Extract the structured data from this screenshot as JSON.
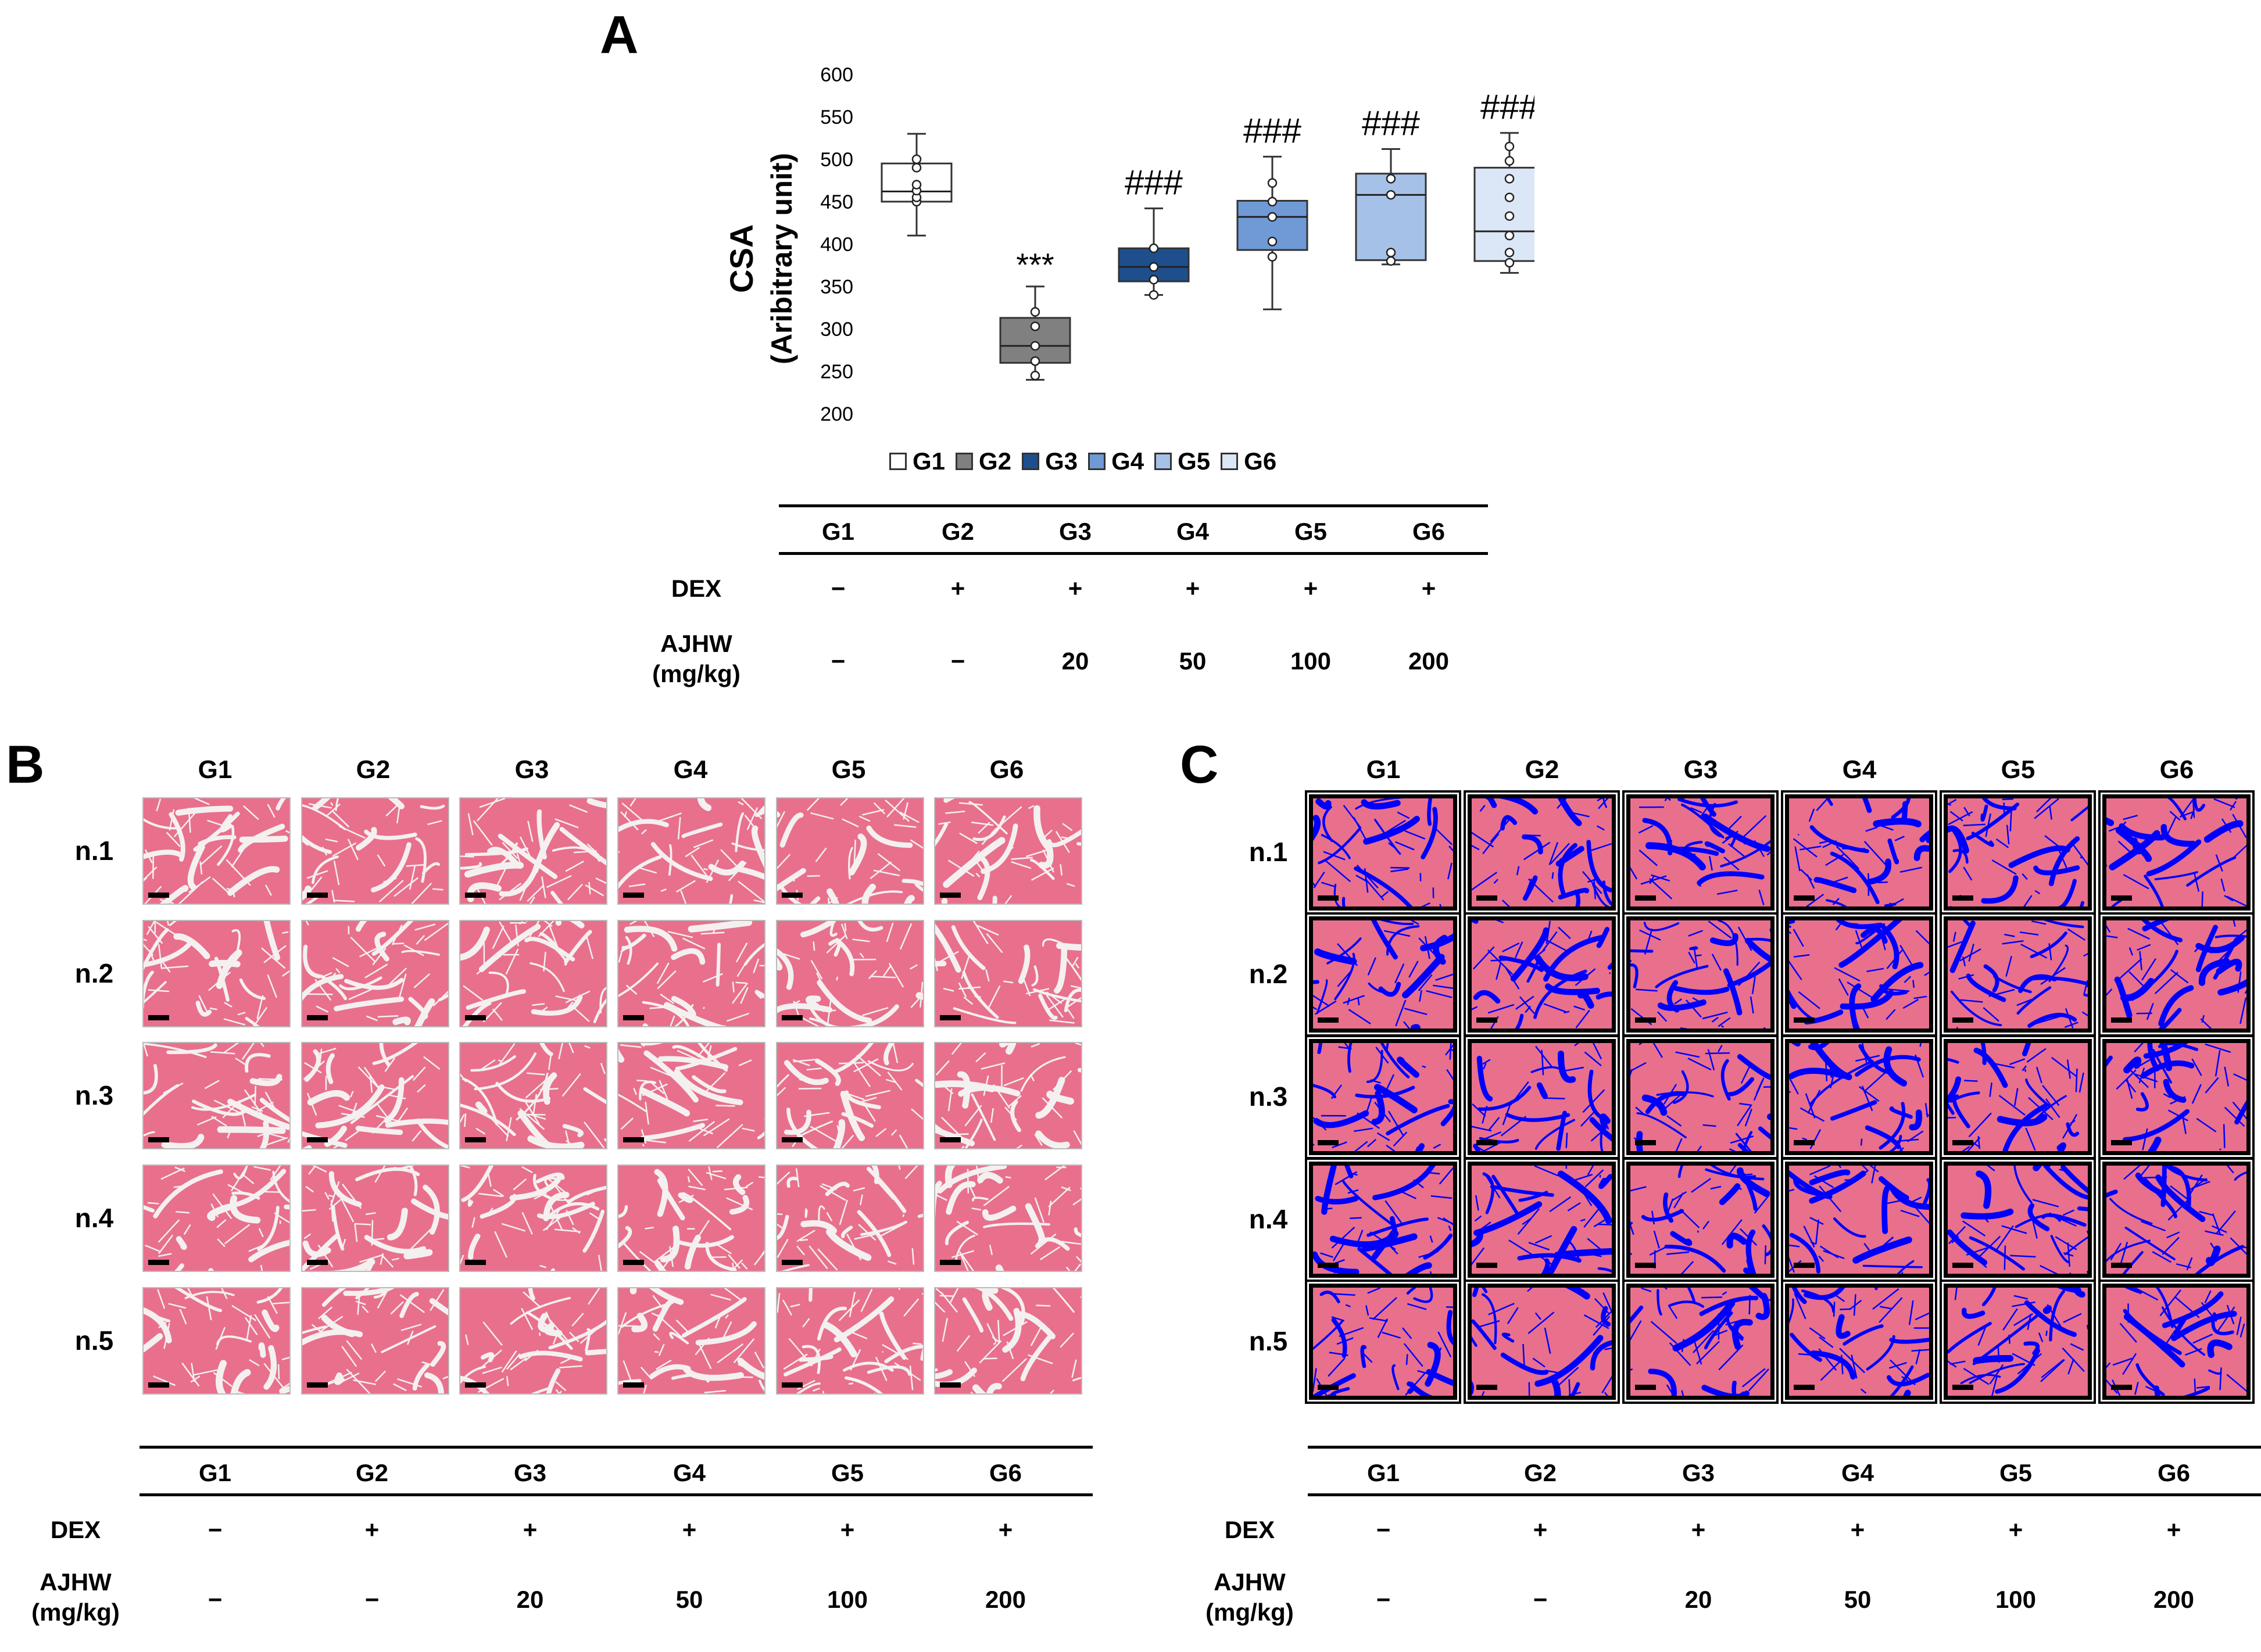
{
  "panels": {
    "a": {
      "letter": "A"
    },
    "b": {
      "letter": "B"
    },
    "c": {
      "letter": "C"
    }
  },
  "chart_data": {
    "type": "box",
    "title": "",
    "ylabel_line1": "CSA",
    "ylabel_line2": "(Aribitrary unit)",
    "ylim": [
      200,
      600
    ],
    "yticks": [
      200,
      250,
      300,
      350,
      400,
      450,
      500,
      550,
      600
    ],
    "legend": [
      {
        "label": "G1",
        "color": "#ffffff"
      },
      {
        "label": "G2",
        "color": "#808080"
      },
      {
        "label": "G3",
        "color": "#1f4e8c"
      },
      {
        "label": "G4",
        "color": "#6f9ad6"
      },
      {
        "label": "G5",
        "color": "#a6c1e8"
      },
      {
        "label": "G6",
        "color": "#dbe6f6"
      }
    ],
    "groups": [
      {
        "name": "G1",
        "color": "#ffffff",
        "whisker_low": 410,
        "q1": 450,
        "median": 462,
        "q3": 495,
        "whisker_high": 530,
        "points": [
          450,
          455,
          463,
          470,
          490,
          500
        ],
        "annotation": ""
      },
      {
        "name": "G2",
        "color": "#808080",
        "whisker_low": 240,
        "q1": 260,
        "median": 280,
        "q3": 313,
        "whisker_high": 350,
        "points": [
          245,
          262,
          280,
          303,
          320
        ],
        "annotation": "***"
      },
      {
        "name": "G3",
        "color": "#1f4e8c",
        "whisker_low": 340,
        "q1": 356,
        "median": 373,
        "q3": 395,
        "whisker_high": 442,
        "points": [
          340,
          358,
          373,
          395
        ],
        "annotation": "###"
      },
      {
        "name": "G4",
        "color": "#6f9ad6",
        "whisker_low": 323,
        "q1": 393,
        "median": 432,
        "q3": 451,
        "whisker_high": 503,
        "points": [
          385,
          403,
          432,
          450,
          472
        ],
        "annotation": "###"
      },
      {
        "name": "G5",
        "color": "#a6c1e8",
        "whisker_low": 376,
        "q1": 381,
        "median": 458,
        "q3": 483,
        "whisker_high": 512,
        "points": [
          380,
          390,
          458,
          477
        ],
        "annotation": "###"
      },
      {
        "name": "G6",
        "color": "#dbe6f6",
        "whisker_low": 366,
        "q1": 380,
        "median": 415,
        "q3": 490,
        "whisker_high": 531,
        "points": [
          378,
          390,
          410,
          433,
          455,
          477,
          498,
          515
        ],
        "annotation": "###"
      }
    ]
  },
  "treatment_table": {
    "groups": [
      "G1",
      "G2",
      "G3",
      "G4",
      "G5",
      "G6"
    ],
    "dex_label": "DEX",
    "dex": [
      "−",
      "+",
      "+",
      "+",
      "+",
      "+"
    ],
    "ajhw_label_line1": "AJHW",
    "ajhw_label_line2": "(mg/kg)",
    "ajhw": [
      "−",
      "−",
      "20",
      "50",
      "100",
      "200"
    ]
  },
  "histology": {
    "column_labels": [
      "G1",
      "G2",
      "G3",
      "G4",
      "G5",
      "G6"
    ],
    "row_labels": [
      "n.1",
      "n.2",
      "n.3",
      "n.4",
      "n.5"
    ],
    "he_color": "#e8708c",
    "gap_color_b": "#f4f0f0",
    "gap_color_c": "#0000ff"
  }
}
